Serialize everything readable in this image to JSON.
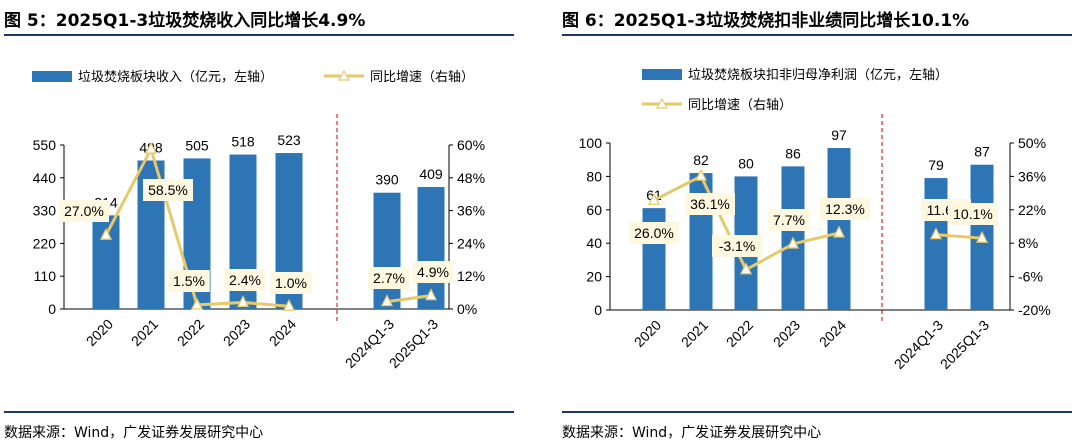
{
  "source_text": "数据来源：Wind，广发证券发展研究中心",
  "colors": {
    "bar": "#2e75b6",
    "line": "#e8c96a",
    "label_bg": "#fdf8df",
    "divider": "#c00000",
    "rule": "#1f3864"
  },
  "chart_data": [
    {
      "type": "bar",
      "title": "图  5：2025Q1-3垃圾焚烧收入同比增长4.9%",
      "categories": [
        "2020",
        "2021",
        "2022",
        "2023",
        "2024",
        "2024Q1-3",
        "2025Q1-3"
      ],
      "series": [
        {
          "name": "垃圾焚烧板块收入（亿元，左轴）",
          "axis": "left",
          "type": "bar",
          "values": [
            314,
            498,
            505,
            518,
            523,
            390,
            409
          ],
          "labels": [
            "314",
            "498",
            "505",
            "518",
            "523",
            "390",
            "409"
          ]
        },
        {
          "name": "同比增速（右轴）",
          "axis": "right",
          "type": "line",
          "values": [
            27.0,
            58.5,
            1.5,
            2.4,
            1.0,
            2.7,
            4.9
          ],
          "labels": [
            "27.0%",
            "58.5%",
            "1.5%",
            "2.4%",
            "1.0%",
            "2.7%",
            "4.9%"
          ]
        }
      ],
      "legend": [
        "垃圾焚烧板块收入（亿元，左轴）",
        "同比增速（右轴）"
      ],
      "y_left": {
        "ticks": [
          "0",
          "110",
          "220",
          "330",
          "440",
          "550"
        ],
        "min": 0,
        "max": 550
      },
      "y_right": {
        "ticks": [
          "0%",
          "12%",
          "24%",
          "36%",
          "48%",
          "60%"
        ],
        "min": 0,
        "max": 60
      }
    },
    {
      "type": "bar",
      "title": "图  6：2025Q1-3垃圾焚烧扣非业绩同比增长10.1%",
      "categories": [
        "2020",
        "2021",
        "2022",
        "2023",
        "2024",
        "2024Q1-3",
        "2025Q1-3"
      ],
      "series": [
        {
          "name": "垃圾焚烧板块扣非归母净利润（亿元，左轴）",
          "axis": "left",
          "type": "bar",
          "values": [
            61,
            82,
            80,
            86,
            97,
            79,
            87
          ],
          "labels": [
            "61",
            "82",
            "80",
            "86",
            "97",
            "79",
            "87"
          ]
        },
        {
          "name": "同比增速（右轴）",
          "axis": "right",
          "type": "line",
          "values": [
            26.0,
            36.1,
            -3.1,
            7.7,
            12.3,
            11.6,
            10.1
          ],
          "labels": [
            "26.0%",
            "36.1%",
            "-3.1%",
            "7.7%",
            "12.3%",
            "11.6%",
            "10.1%"
          ]
        }
      ],
      "legend": [
        "垃圾焚烧板块扣非归母净利润（亿元，左轴）",
        "同比增速（右轴）"
      ],
      "y_left": {
        "ticks": [
          "0",
          "20",
          "40",
          "60",
          "80",
          "100"
        ],
        "min": 0,
        "max": 100
      },
      "y_right": {
        "ticks": [
          "-20%",
          "-6%",
          "8%",
          "22%",
          "36%",
          "50%"
        ],
        "min": -20,
        "max": 50
      }
    }
  ]
}
